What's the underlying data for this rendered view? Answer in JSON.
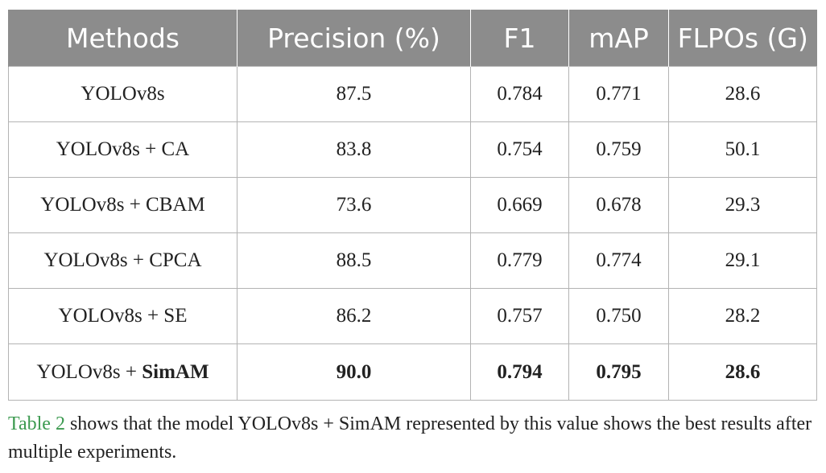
{
  "table": {
    "headers": [
      "Methods",
      "Precision (%)",
      "F1",
      "mAP",
      "FLPOs (G)"
    ],
    "rows": [
      {
        "method_base": "YOLOv8s",
        "method_suffix": "",
        "precision": "87.5",
        "f1": "0.784",
        "map": "0.771",
        "flops": "28.6"
      },
      {
        "method_base": "YOLOv8s + CA",
        "method_suffix": "",
        "precision": "83.8",
        "f1": "0.754",
        "map": "0.759",
        "flops": "50.1"
      },
      {
        "method_base": "YOLOv8s + CBAM",
        "method_suffix": "",
        "precision": "73.6",
        "f1": "0.669",
        "map": "0.678",
        "flops": "29.3"
      },
      {
        "method_base": "YOLOv8s + CPCA",
        "method_suffix": "",
        "precision": "88.5",
        "f1": "0.779",
        "map": "0.774",
        "flops": "29.1"
      },
      {
        "method_base": "YOLOv8s + SE",
        "method_suffix": "",
        "precision": "86.2",
        "f1": "0.757",
        "map": "0.750",
        "flops": "28.2"
      },
      {
        "method_base": "YOLOv8s + ",
        "method_suffix": "SimAM",
        "precision": "90.0",
        "f1": "0.794",
        "map": "0.795",
        "flops": "28.6"
      }
    ]
  },
  "caption": {
    "ref": "Table 2",
    "text": " shows that the model YOLOv8s + SimAM represented by this value shows the best results after multiple experiments."
  }
}
